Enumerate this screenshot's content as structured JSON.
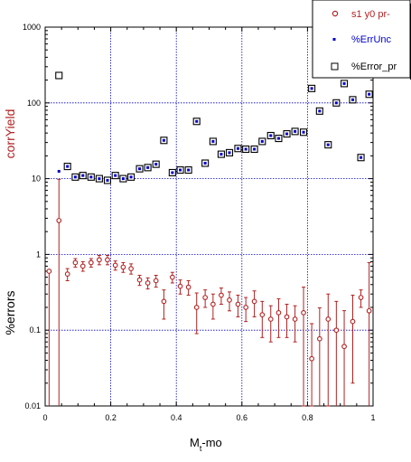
{
  "chart_data": {
    "type": "scatter",
    "xlabel": "M",
    "xlabel_sub": "t",
    "xlabel_tail": "-mo",
    "ylabel_top": "corrYield",
    "ylabel_bottom": "%errors",
    "xlim": [
      0,
      1
    ],
    "ylim": [
      0.01,
      1000
    ],
    "yscale": "log",
    "grid": true,
    "legend_position": "top-right",
    "x_ticks": [
      "0",
      "0.2",
      "0.4",
      "0.6",
      "0.8",
      "1"
    ],
    "y_ticks": [
      "0.01",
      "0.1",
      "1",
      "10",
      "100",
      "1000"
    ],
    "colors": {
      "series1": "#b22222",
      "series2": "#0000cc",
      "series3": "#000000",
      "grid": "#0000cc"
    },
    "series": [
      {
        "name": "s1 y0 pr-",
        "marker": "circle",
        "x": [
          0.012,
          0.042,
          0.068,
          0.092,
          0.115,
          0.14,
          0.165,
          0.19,
          0.214,
          0.238,
          0.262,
          0.288,
          0.313,
          0.338,
          0.362,
          0.388,
          0.412,
          0.437,
          0.462,
          0.488,
          0.512,
          0.537,
          0.562,
          0.588,
          0.612,
          0.638,
          0.662,
          0.688,
          0.712,
          0.737,
          0.762,
          0.788,
          0.813,
          0.837,
          0.863,
          0.888,
          0.912,
          0.938,
          0.963,
          0.988
        ],
        "y": [
          0.6,
          2.8,
          0.55,
          0.78,
          0.7,
          0.78,
          0.85,
          0.85,
          0.72,
          0.68,
          0.65,
          0.46,
          0.42,
          0.45,
          0.24,
          0.5,
          0.38,
          0.37,
          0.2,
          0.27,
          0.22,
          0.29,
          0.25,
          0.22,
          0.2,
          0.24,
          0.16,
          0.14,
          0.17,
          0.15,
          0.14,
          0.17,
          0.042,
          0.077,
          0.14,
          0.1,
          0.061,
          0.13,
          0.27,
          0.18
        ],
        "err_low": [
          0.6,
          2.8,
          0.1,
          0.1,
          0.1,
          0.1,
          0.12,
          0.12,
          0.1,
          0.1,
          0.1,
          0.07,
          0.07,
          0.08,
          0.1,
          0.08,
          0.08,
          0.08,
          0.11,
          0.07,
          0.08,
          0.07,
          0.07,
          0.07,
          0.07,
          0.09,
          0.08,
          0.07,
          0.09,
          0.07,
          0.07,
          0.16,
          0.032,
          0.067,
          0.13,
          0.092,
          0.058,
          0.11,
          0.07,
          0.17
        ],
        "err_high": [
          0.0,
          7.0,
          0.1,
          0.1,
          0.1,
          0.1,
          0.12,
          0.12,
          0.1,
          0.1,
          0.1,
          0.07,
          0.07,
          0.08,
          0.1,
          0.08,
          0.08,
          0.08,
          0.11,
          0.07,
          0.08,
          0.07,
          0.07,
          0.07,
          0.07,
          0.09,
          0.08,
          0.07,
          0.09,
          0.07,
          0.07,
          0.2,
          0.08,
          0.12,
          0.16,
          0.14,
          0.12,
          0.16,
          0.07,
          0.6
        ]
      },
      {
        "name": "%ErrUnc",
        "marker": "dot",
        "x": [
          0.042,
          0.068,
          0.092,
          0.115,
          0.14,
          0.165,
          0.19,
          0.214,
          0.238,
          0.262,
          0.288,
          0.313,
          0.338,
          0.362,
          0.388,
          0.412,
          0.437,
          0.462,
          0.488,
          0.512,
          0.537,
          0.562,
          0.588,
          0.612,
          0.638,
          0.662,
          0.688,
          0.712,
          0.737,
          0.762,
          0.788,
          0.813,
          0.837,
          0.863,
          0.888,
          0.912,
          0.938,
          0.963,
          0.988
        ],
        "y": [
          12.5,
          14.5,
          10.5,
          11.0,
          10.5,
          10.0,
          9.5,
          11.0,
          10.0,
          10.5,
          13.5,
          14.0,
          15.5,
          32.0,
          12.0,
          13.0,
          13.0,
          57.0,
          16.0,
          31.0,
          21.0,
          22.0,
          25.0,
          24.5,
          24.5,
          31.0,
          37.0,
          34.0,
          39.0,
          42.0,
          41.0,
          155.0,
          78.0,
          28.0,
          100.0,
          180.0,
          110.0,
          19.0,
          130.0
        ]
      },
      {
        "name": "%Error_pr",
        "marker": "square",
        "x": [
          0.042,
          0.068,
          0.092,
          0.115,
          0.14,
          0.165,
          0.19,
          0.214,
          0.238,
          0.262,
          0.288,
          0.313,
          0.338,
          0.362,
          0.388,
          0.412,
          0.437,
          0.462,
          0.488,
          0.512,
          0.537,
          0.562,
          0.588,
          0.612,
          0.638,
          0.662,
          0.688,
          0.712,
          0.737,
          0.762,
          0.788,
          0.813,
          0.837,
          0.863,
          0.888,
          0.912,
          0.938,
          0.963,
          0.988
        ],
        "y": [
          230.0,
          14.5,
          10.5,
          11.0,
          10.5,
          10.0,
          9.5,
          11.0,
          10.0,
          10.5,
          13.5,
          14.0,
          15.5,
          32.0,
          12.0,
          13.0,
          13.0,
          57.0,
          16.0,
          31.0,
          21.0,
          22.0,
          25.0,
          24.5,
          24.5,
          31.0,
          37.0,
          34.0,
          39.0,
          42.0,
          41.0,
          155.0,
          78.0,
          28.0,
          100.0,
          180.0,
          110.0,
          19.0,
          130.0
        ]
      }
    ]
  }
}
